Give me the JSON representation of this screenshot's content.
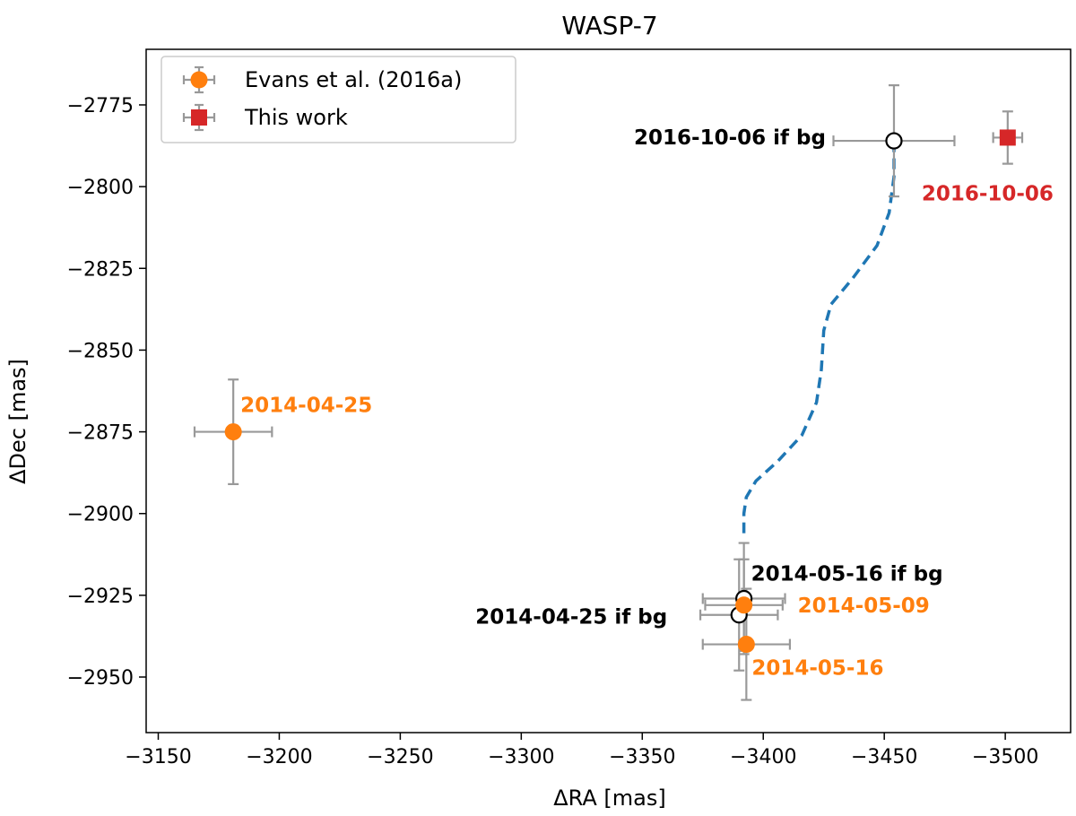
{
  "chart_data": {
    "type": "scatter",
    "title": "WASP-7",
    "xlabel": "ΔRA [mas]",
    "ylabel": "ΔDec [mas]",
    "xlim": [
      -3145,
      -3527
    ],
    "ylim": [
      -2967,
      -2758
    ],
    "xticks": [
      -3150,
      -3200,
      -3250,
      -3300,
      -3350,
      -3400,
      -3450,
      -3500
    ],
    "xtick_labels": [
      "−3150",
      "−3200",
      "−3250",
      "−3300",
      "−3350",
      "−3400",
      "−3450",
      "−3500"
    ],
    "yticks": [
      -2775,
      -2800,
      -2825,
      -2850,
      -2875,
      -2900,
      -2925,
      -2950
    ],
    "ytick_labels": [
      "−2775",
      "−2800",
      "−2825",
      "−2850",
      "−2875",
      "−2900",
      "−2925",
      "−2950"
    ],
    "colors": {
      "evans": "#ff7f0e",
      "this_work": "#d62728",
      "errorbar": "#999999",
      "track": "#1f77b4",
      "bg_marker_edge": "#000000"
    },
    "legend": {
      "position": "top-left",
      "entries": [
        {
          "label": "Evans et al. (2016a)",
          "marker": "circle",
          "color": "#ff7f0e"
        },
        {
          "label": "This work",
          "marker": "square",
          "color": "#d62728"
        }
      ]
    },
    "series": [
      {
        "name": "Evans et al. (2016a)",
        "marker": "circle",
        "points": [
          {
            "date": "2014-04-25",
            "x": -3181,
            "y": -2875,
            "xerr": 16,
            "yerr": 16
          },
          {
            "date": "2014-05-09",
            "x": -3392,
            "y": -2928,
            "xerr": 16,
            "yerr": 14
          },
          {
            "date": "2014-05-16",
            "x": -3393,
            "y": -2940,
            "xerr": 18,
            "yerr": 17
          }
        ]
      },
      {
        "name": "This work",
        "marker": "square",
        "points": [
          {
            "date": "2016-10-06",
            "x": -3501,
            "y": -2785,
            "xerr": 6,
            "yerr": 8
          }
        ]
      }
    ],
    "background_predictions": [
      {
        "label": "2014-04-25 if bg",
        "x": -3390,
        "y": -2931,
        "xerr": 16,
        "yerr": 17
      },
      {
        "label": "2014-05-16 if bg",
        "x": -3392,
        "y": -2926,
        "xerr": 17,
        "yerr": 17
      },
      {
        "label": "2016-10-06 if bg",
        "x": -3454,
        "y": -2786,
        "xerr": 25,
        "yerr": 17
      }
    ],
    "track": {
      "x": [
        -3392,
        -3392,
        -3393,
        -3397,
        -3406,
        -3416,
        -3422,
        -3424,
        -3425,
        -3428,
        -3437,
        -3447,
        -3452,
        -3454,
        -3454
      ],
      "y": [
        -2906,
        -2900,
        -2895,
        -2890,
        -2884,
        -2876,
        -2866,
        -2856,
        -2844,
        -2836,
        -2828,
        -2818,
        -2808,
        -2797,
        -2786
      ]
    },
    "annotations": [
      {
        "text": "2014-04-25",
        "color": "#ff7f0e"
      },
      {
        "text": "2014-05-09",
        "color": "#ff7f0e"
      },
      {
        "text": "2014-05-16",
        "color": "#ff7f0e"
      },
      {
        "text": "2016-10-06",
        "color": "#d62728"
      },
      {
        "text": "2014-04-25 if bg",
        "color": "#000000"
      },
      {
        "text": "2014-05-16 if bg",
        "color": "#000000"
      },
      {
        "text": "2016-10-06 if bg",
        "color": "#000000"
      }
    ]
  }
}
